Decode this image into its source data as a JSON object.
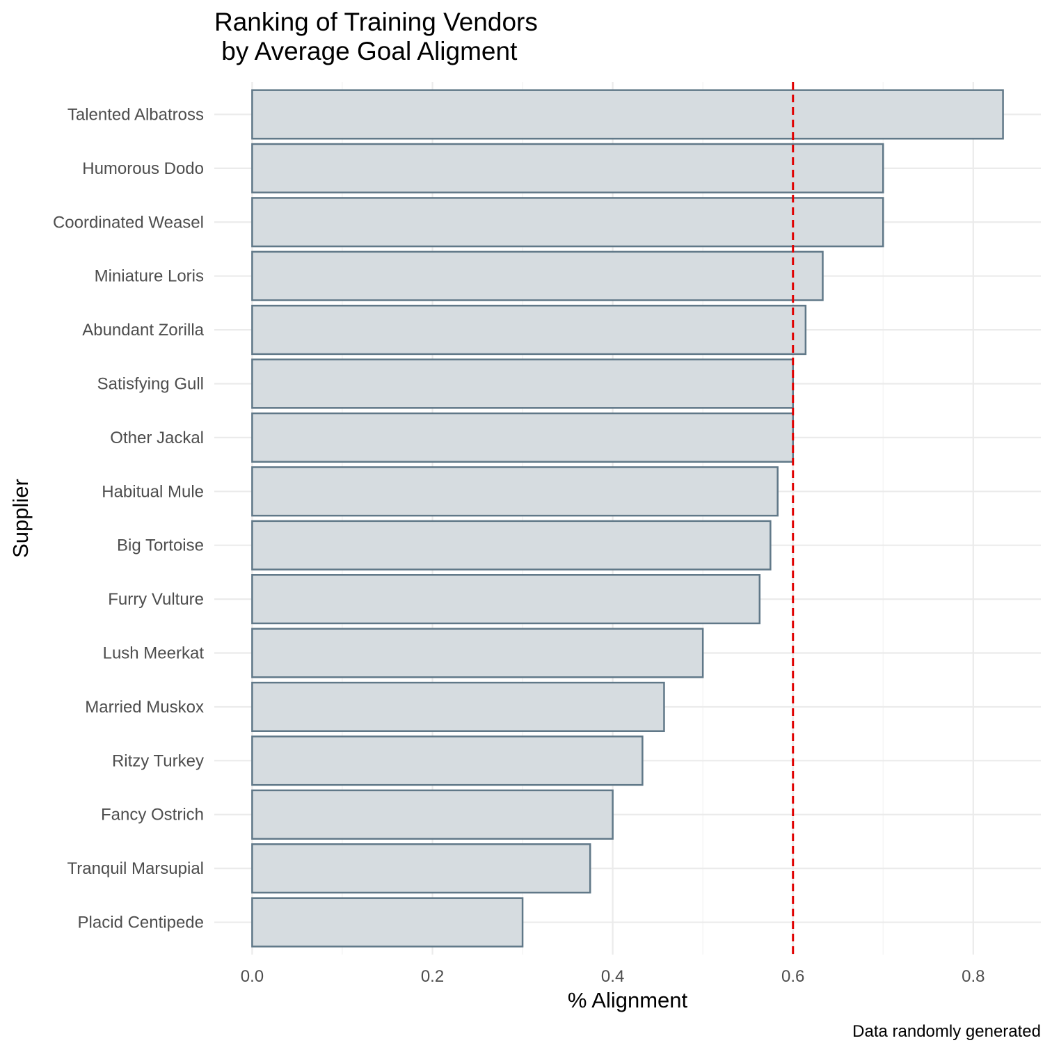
{
  "chart_data": {
    "type": "bar",
    "orientation": "horizontal",
    "title_line1": "Ranking of Training Vendors",
    "title_line2": " by Average Goal Aligment",
    "xlabel": "% Alignment",
    "ylabel": "Supplier",
    "caption": "Data randomly generated",
    "categories": [
      "Talented Albatross",
      "Humorous Dodo",
      "Coordinated Weasel",
      "Miniature Loris",
      "Abundant Zorilla",
      "Satisfying Gull",
      "Other Jackal",
      "Habitual Mule",
      "Big Tortoise",
      "Furry Vulture",
      "Lush Meerkat",
      "Married Muskox",
      "Ritzy Turkey",
      "Fancy Ostrich",
      "Tranquil Marsupial",
      "Placid Centipede"
    ],
    "values": [
      0.833,
      0.7,
      0.7,
      0.633,
      0.614,
      0.6,
      0.6,
      0.583,
      0.575,
      0.563,
      0.5,
      0.457,
      0.433,
      0.4,
      0.375,
      0.3
    ],
    "xticks": [
      0.0,
      0.2,
      0.4,
      0.6,
      0.8
    ],
    "xtick_labels": [
      "0.0",
      "0.2",
      "0.4",
      "0.6",
      "0.8"
    ],
    "xlim": [
      -0.042,
      0.875
    ],
    "reference_line": 0.6,
    "bar_fill": "#d6dce0",
    "bar_stroke": "#607888",
    "reference_line_color": "#e00000",
    "grid": true,
    "legend": "none"
  }
}
